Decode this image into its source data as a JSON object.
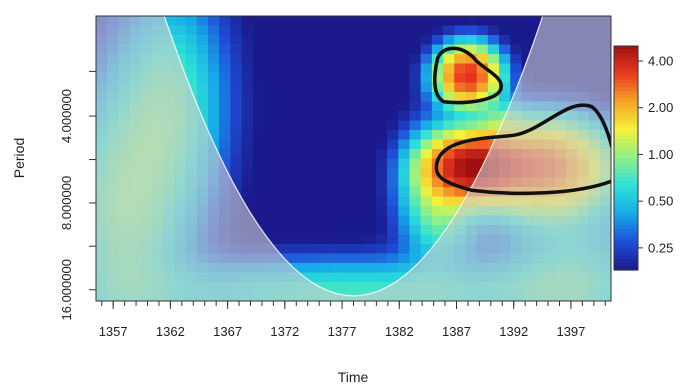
{
  "chart_data": {
    "type": "heatmap",
    "title": "",
    "xlabel": "Time",
    "ylabel": "Period",
    "x_ticks": [
      1357,
      1362,
      1367,
      1372,
      1377,
      1382,
      1387,
      1392,
      1397
    ],
    "x_tick_labels": [
      "1357",
      "1362",
      "1367",
      "1372",
      "1377",
      "1382",
      "1387",
      "1392",
      "1397"
    ],
    "xlim": [
      1355.5,
      1400.5
    ],
    "y_ticks": [
      4,
      8,
      16
    ],
    "y_tick_labels": [
      "4.000000",
      "8.000000",
      "16.000000"
    ],
    "ylim": [
      1.8,
      17.5
    ],
    "y_scale": "log2",
    "y_reversed": true,
    "colorbar": {
      "scale": "log",
      "range": [
        0.18,
        5.0
      ],
      "ticks": [
        0.25,
        0.5,
        1,
        2,
        4
      ],
      "tick_labels": [
        "0.25",
        "0.50",
        "1.00",
        "2.00",
        "4.00"
      ],
      "colors": [
        "#1a1a8c",
        "#1f4ed8",
        "#16a9e8",
        "#2de0d8",
        "#8ef08a",
        "#f2f23a",
        "#f7a528",
        "#ea3a1f",
        "#a01010"
      ]
    },
    "significance_contours": [
      {
        "time_range": [
          1385,
          1391
        ],
        "period_range": [
          2.3,
          3.6
        ],
        "peak_power": 3.5
      },
      {
        "time_range": [
          1385,
          1400
        ],
        "period_range": [
          4.5,
          7.3
        ],
        "peak_power": 4.3
      }
    ],
    "cone_of_influence": {
      "shaded_outside": true
    }
  },
  "colors": {
    "background": "#ffffff",
    "low_power": "#1a1a8c",
    "high_power": "#a01010",
    "contour": "#111111",
    "coi_shade": "#cfcfcf"
  }
}
